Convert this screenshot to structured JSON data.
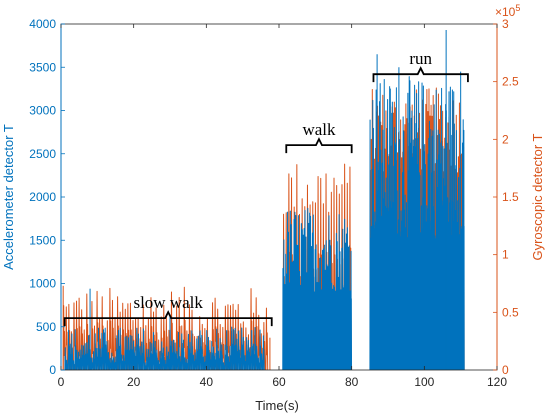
{
  "chart_data": {
    "type": "line",
    "xlabel": "Time(s)",
    "x_ticks": [
      0,
      20,
      40,
      60,
      80,
      100,
      120
    ],
    "xlim": [
      0,
      120
    ],
    "y_left": {
      "label": "Accelerometer detector T",
      "ticks": [
        0,
        500,
        1000,
        1500,
        2000,
        2500,
        3000,
        3500,
        4000
      ],
      "lim": [
        0,
        4000
      ],
      "color": "#0072BD"
    },
    "y_right": {
      "label": "Gyroscopic detector T",
      "ticks": [
        0,
        0.5,
        1,
        1.5,
        2,
        2.5,
        3
      ],
      "tick_labels": [
        "0",
        "0.5",
        "1",
        "1.5",
        "2",
        "2.5",
        "3"
      ],
      "lim": [
        0,
        3
      ],
      "exponent": "×10^5",
      "exponent_base": "×10",
      "exponent_power": "5",
      "color": "#D95319"
    },
    "series": [
      {
        "axis": "left",
        "color": "#0072BD",
        "segments": [
          {
            "x0": 1,
            "x1": 56,
            "pulses": 120,
            "peak_min": 80,
            "peak_max": 500,
            "spikes": [
              [
                8,
                940
              ],
              [
                30,
                620
              ],
              [
                12,
                430
              ]
            ]
          },
          {
            "x0": 61,
            "x1": 80,
            "pulses": 75,
            "peak_min": 900,
            "peak_max": 1900,
            "spikes": []
          },
          {
            "x0": 85,
            "x1": 111,
            "pulses": 140,
            "peak_min": 1500,
            "peak_max": 3400,
            "spikes": [
              [
                87,
                3650
              ],
              [
                106,
                3930
              ],
              [
                110,
                3450
              ],
              [
                93,
                3500
              ]
            ]
          }
        ]
      },
      {
        "axis": "right",
        "color": "#D95319",
        "segments": [
          {
            "x0": 0.5,
            "x1": 57,
            "pulses": 80,
            "peak_min": 0.25,
            "peak_max": 0.72,
            "spikes": [
              [
                0.6,
                0.73
              ],
              [
                57.5,
                0.28
              ]
            ]
          },
          {
            "x0": 61,
            "x1": 80,
            "pulses": 26,
            "peak_min": 1.3,
            "peak_max": 1.82,
            "spikes": []
          },
          {
            "x0": 85,
            "x1": 111,
            "pulses": 90,
            "peak_min": 1.7,
            "peak_max": 2.45,
            "spikes": []
          }
        ]
      }
    ],
    "annotations": [
      {
        "text": "slow walk",
        "x_from": 1,
        "x_to": 58,
        "y": 600,
        "axis": "left"
      },
      {
        "text": "walk",
        "x_from": 62,
        "x_to": 80,
        "y": 2600,
        "axis": "left"
      },
      {
        "text": "run",
        "x_from": 86,
        "x_to": 112,
        "y": 3420,
        "axis": "left"
      }
    ],
    "grid": false,
    "box": true
  }
}
